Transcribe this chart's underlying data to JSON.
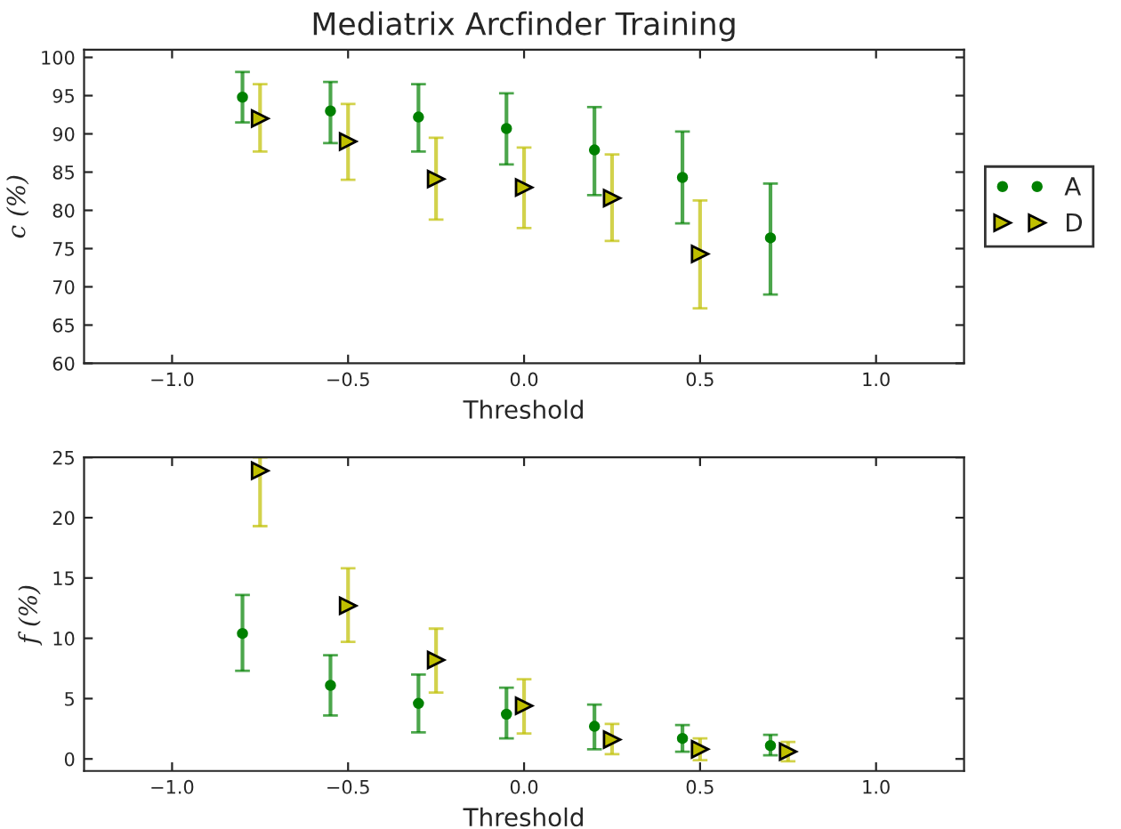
{
  "chart_data": [
    {
      "type": "scatter",
      "title": "Mediatrix Arcfinder Training",
      "xlabel": "Threshold",
      "ylabel": "c (%)",
      "xlim": [
        -1.25,
        1.25
      ],
      "xticks": [
        {
          "value": -1.0,
          "label": "−1.0"
        },
        {
          "value": -0.5,
          "label": "−0.5"
        },
        {
          "value": 0.0,
          "label": "0.0"
        },
        {
          "value": 0.5,
          "label": "0.5"
        },
        {
          "value": 1.0,
          "label": "1.0"
        }
      ],
      "ylim": [
        60,
        101
      ],
      "yticks": [
        60,
        65,
        70,
        75,
        80,
        85,
        90,
        95,
        100
      ],
      "legend": "right",
      "grid": false,
      "series": [
        {
          "name": "A",
          "color": "#008000",
          "marker": "circle",
          "x": [
            -0.8,
            -0.55,
            -0.3,
            -0.05,
            0.2,
            0.45,
            0.7
          ],
          "values": [
            94.8,
            93.0,
            92.2,
            90.7,
            87.9,
            84.3,
            76.4
          ],
          "errors": [
            [
              91.5,
              98.1
            ],
            [
              88.8,
              96.8
            ],
            [
              87.7,
              96.5
            ],
            [
              86.0,
              95.3
            ],
            [
              82.0,
              93.5
            ],
            [
              78.3,
              90.3
            ],
            [
              69.0,
              83.5
            ]
          ]
        },
        {
          "name": "D",
          "color": "#bfbf00",
          "marker": "triangle",
          "x": [
            -0.75,
            -0.5,
            -0.25,
            0.0,
            0.25,
            0.5
          ],
          "values": [
            92.0,
            89.0,
            84.1,
            83.0,
            81.6,
            74.3
          ],
          "errors": [
            [
              87.7,
              96.5
            ],
            [
              84.0,
              93.9
            ],
            [
              78.8,
              89.5
            ],
            [
              77.7,
              88.2
            ],
            [
              76.0,
              87.3
            ],
            [
              67.2,
              81.3
            ]
          ]
        }
      ]
    },
    {
      "type": "scatter",
      "xlabel": "Threshold",
      "ylabel": "f (%)",
      "xlim": [
        -1.25,
        1.25
      ],
      "xticks": [
        {
          "value": -1.0,
          "label": "−1.0"
        },
        {
          "value": -0.5,
          "label": "−0.5"
        },
        {
          "value": 0.0,
          "label": "0.0"
        },
        {
          "value": 0.5,
          "label": "0.5"
        },
        {
          "value": 1.0,
          "label": "1.0"
        }
      ],
      "ylim": [
        -1,
        25
      ],
      "yticks": [
        0,
        5,
        10,
        15,
        20,
        25
      ],
      "legend": false,
      "grid": false,
      "series": [
        {
          "color": "#008000",
          "marker": "circle",
          "x": [
            -0.8,
            -0.55,
            -0.3,
            -0.05,
            0.2,
            0.45,
            0.7
          ],
          "values": [
            10.4,
            6.1,
            4.6,
            3.7,
            2.7,
            1.7,
            1.1
          ],
          "errors": [
            [
              7.3,
              13.6
            ],
            [
              3.6,
              8.6
            ],
            [
              2.2,
              7.0
            ],
            [
              1.7,
              5.9
            ],
            [
              0.8,
              4.5
            ],
            [
              0.6,
              2.8
            ],
            [
              0.3,
              2.0
            ]
          ]
        },
        {
          "color": "#bfbf00",
          "marker": "triangle",
          "x": [
            -0.75,
            -0.5,
            -0.25,
            0.0,
            0.25,
            0.5,
            0.75
          ],
          "values": [
            23.9,
            12.7,
            8.2,
            4.4,
            1.6,
            0.8,
            0.6
          ],
          "errors": [
            [
              19.3,
              25.0
            ],
            [
              9.7,
              15.8
            ],
            [
              5.5,
              10.8
            ],
            [
              2.1,
              6.6
            ],
            [
              0.4,
              2.9
            ],
            [
              -0.1,
              1.7
            ],
            [
              -0.2,
              1.4
            ]
          ]
        }
      ]
    }
  ]
}
